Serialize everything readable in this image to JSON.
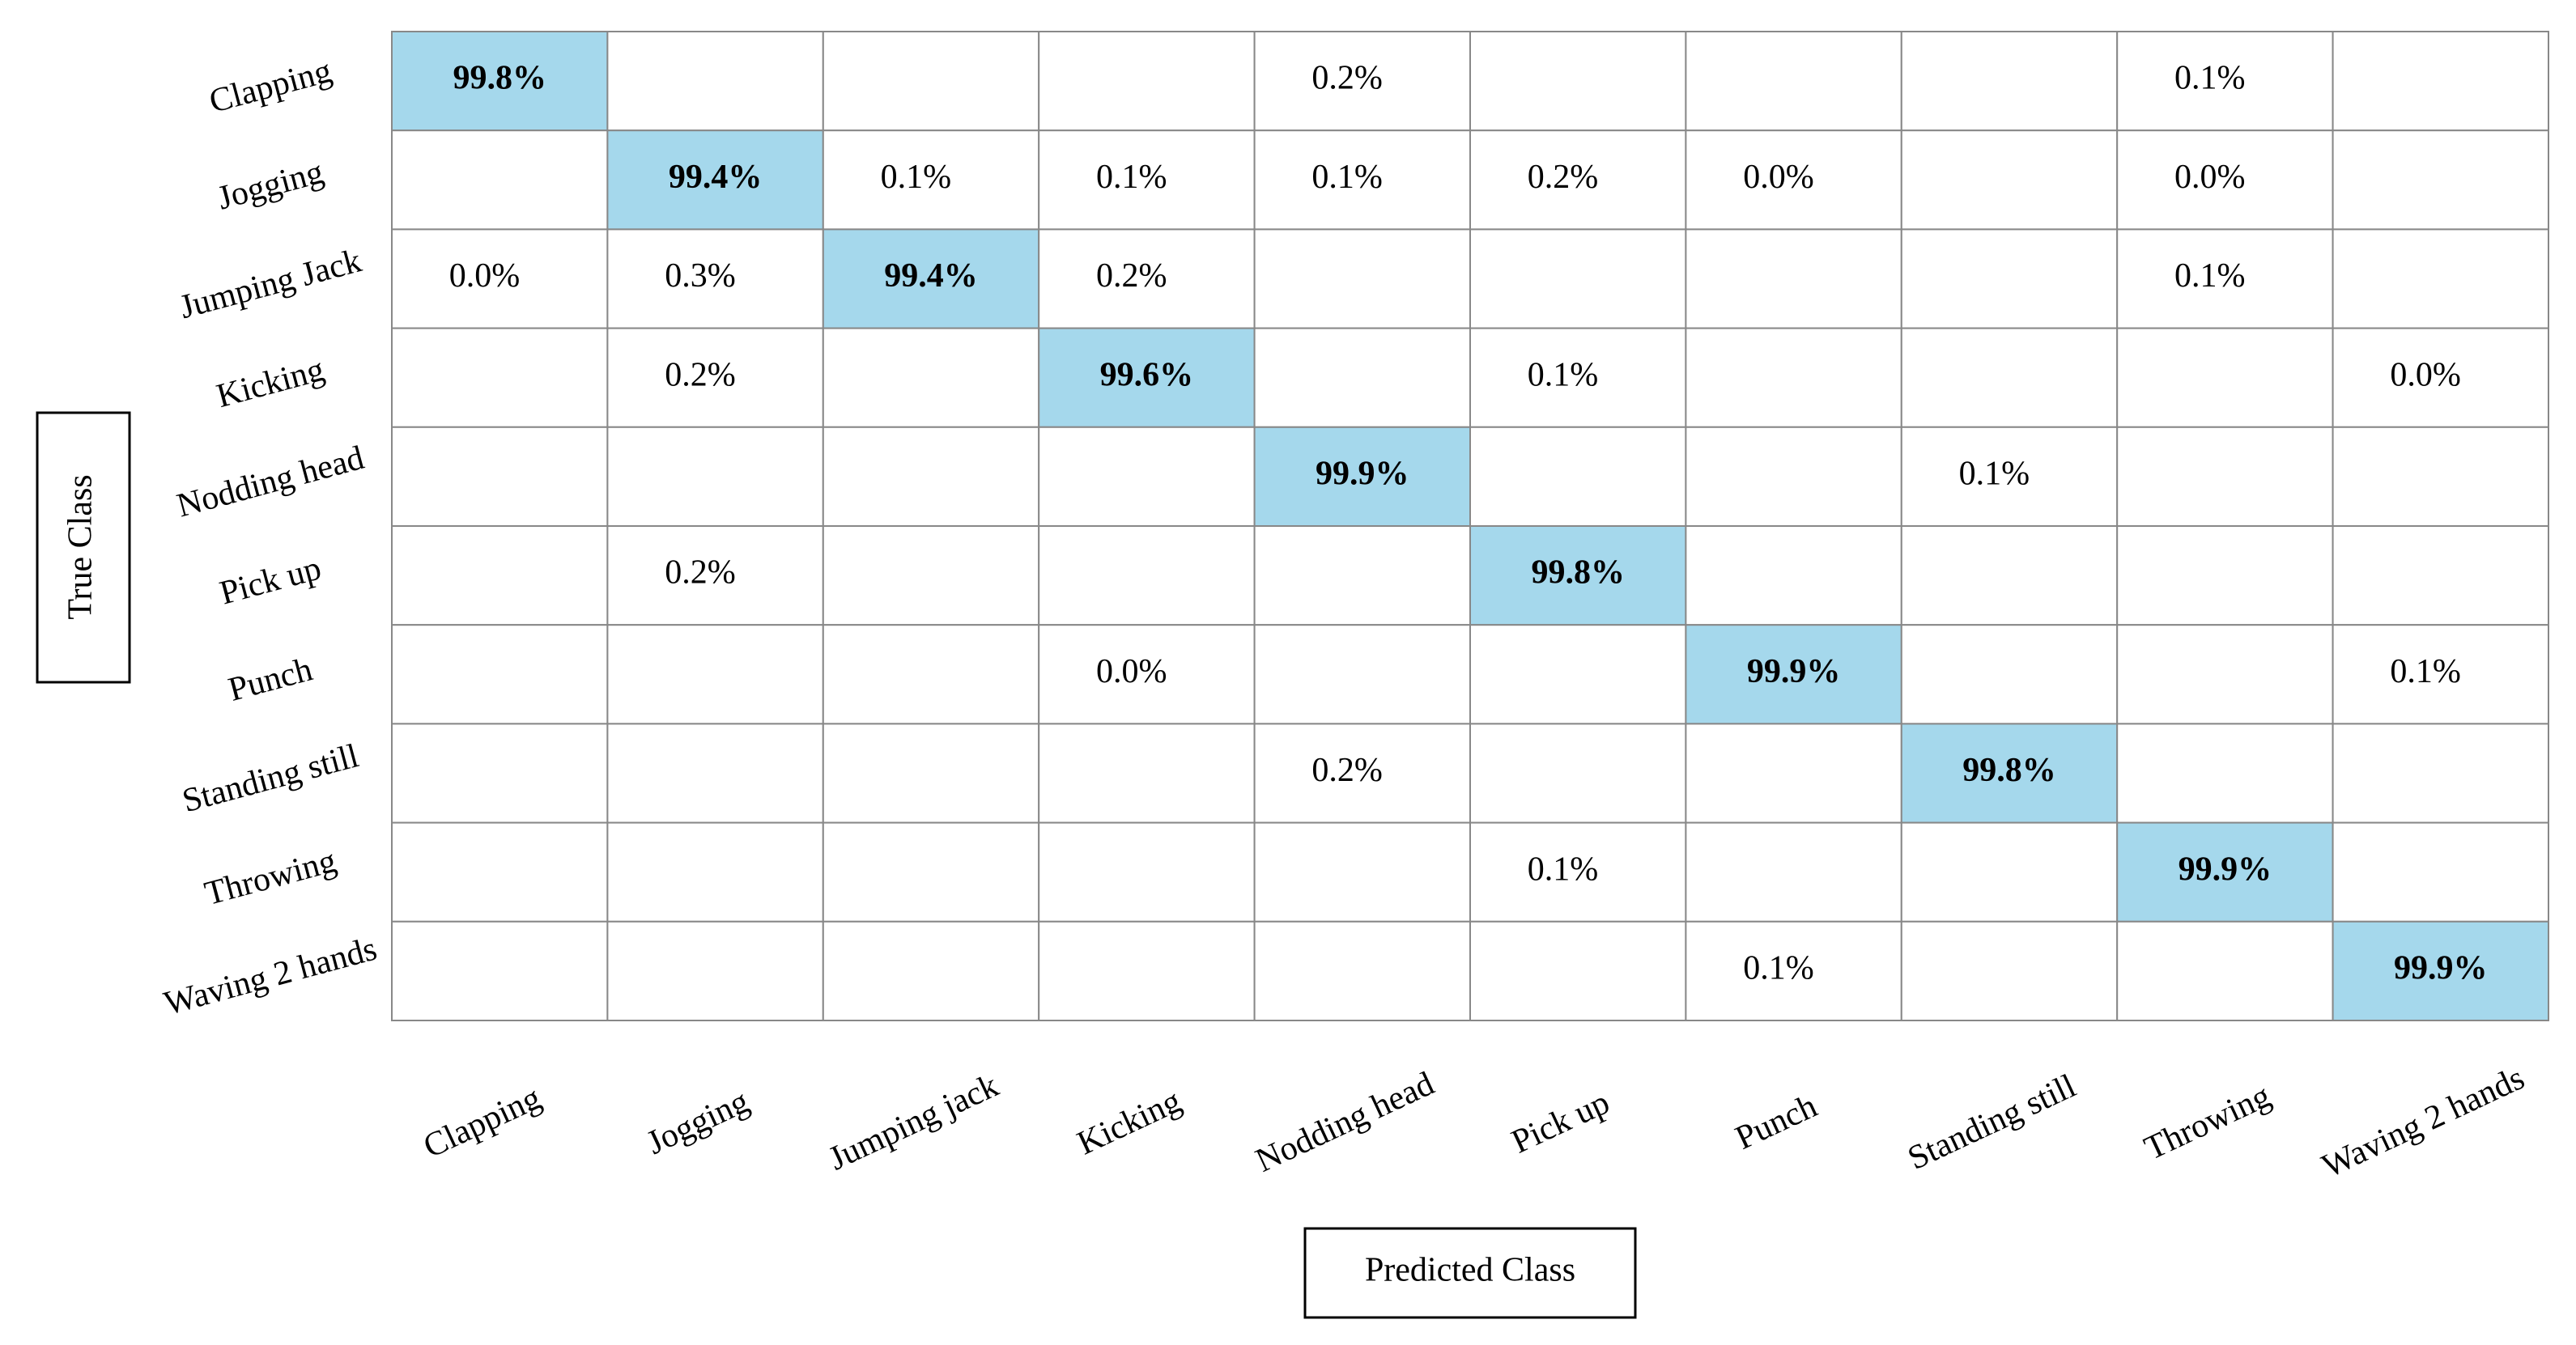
{
  "chart_data": {
    "type": "heatmap",
    "x_label": "Predicted Class",
    "y_label": "True Class",
    "x_categories": [
      "Clapping",
      "Jogging",
      "Jumping jack",
      "Kicking",
      "Nodding head",
      "Pick up",
      "Punch",
      "Standing still",
      "Throwing",
      "Waving 2 hands"
    ],
    "y_categories": [
      "Clapping",
      "Jogging",
      "Jumping Jack",
      "Kicking",
      "Nodding head",
      "Pick up",
      "Punch",
      "Standing still",
      "Throwing",
      "Waving 2 hands"
    ],
    "values": [
      [
        99.8,
        null,
        null,
        null,
        0.2,
        null,
        null,
        null,
        0.1,
        null
      ],
      [
        null,
        99.4,
        0.1,
        0.1,
        0.1,
        0.2,
        0.0,
        null,
        0.0,
        null
      ],
      [
        0.0,
        0.3,
        99.4,
        0.2,
        null,
        null,
        null,
        null,
        0.1,
        null
      ],
      [
        null,
        0.2,
        null,
        99.6,
        null,
        0.1,
        null,
        null,
        null,
        0.0
      ],
      [
        null,
        null,
        null,
        null,
        99.9,
        null,
        null,
        0.1,
        null,
        null
      ],
      [
        null,
        0.2,
        null,
        null,
        null,
        99.8,
        null,
        null,
        null,
        null
      ],
      [
        null,
        null,
        null,
        0.0,
        null,
        null,
        99.9,
        null,
        null,
        0.1
      ],
      [
        null,
        null,
        null,
        null,
        0.2,
        null,
        null,
        99.8,
        null,
        null
      ],
      [
        null,
        null,
        null,
        null,
        null,
        0.1,
        null,
        null,
        99.9,
        null
      ],
      [
        null,
        null,
        null,
        null,
        null,
        null,
        0.1,
        null,
        null,
        99.9
      ]
    ],
    "value_labels": [
      [
        "99.8%",
        null,
        null,
        null,
        "0.2%",
        null,
        null,
        null,
        "0.1%",
        null
      ],
      [
        null,
        "99.4%",
        "0.1%",
        "0.1%",
        "0.1%",
        "0.2%",
        "0.0%",
        null,
        "0.0%",
        null
      ],
      [
        "0.0%",
        "0.3%",
        "99.4%",
        "0.2%",
        null,
        null,
        null,
        null,
        "0.1%",
        null
      ],
      [
        null,
        "0.2%",
        null,
        "99.6%",
        null,
        "0.1%",
        null,
        null,
        null,
        "0.0%"
      ],
      [
        null,
        null,
        null,
        null,
        "99.9%",
        null,
        null,
        "0.1%",
        null,
        null
      ],
      [
        null,
        "0.2%",
        null,
        null,
        null,
        "99.8%",
        null,
        null,
        null,
        null
      ],
      [
        null,
        null,
        null,
        "0.0%",
        null,
        null,
        "99.9%",
        null,
        null,
        "0.1%"
      ],
      [
        null,
        null,
        null,
        null,
        "0.2%",
        null,
        null,
        "99.8%",
        null,
        null
      ],
      [
        null,
        null,
        null,
        null,
        null,
        "0.1%",
        null,
        null,
        "99.9%",
        null
      ],
      [
        null,
        null,
        null,
        null,
        null,
        null,
        "0.1%",
        null,
        null,
        "99.9%"
      ]
    ],
    "highlight_color": "#a5d8ec"
  }
}
